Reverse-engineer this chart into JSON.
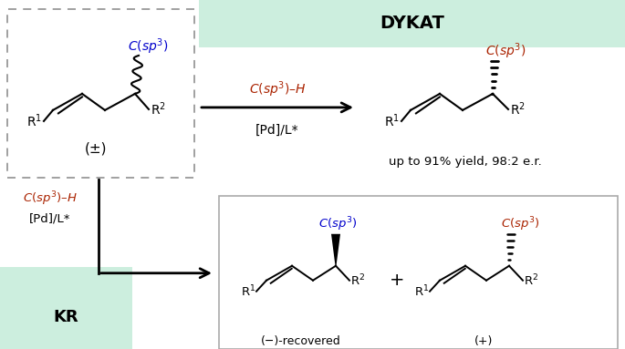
{
  "bg_color": "#ffffff",
  "mint_color": "#cceede",
  "dashed_box_color": "#999999",
  "red_color": "#aa2200",
  "blue_color": "#0000cc",
  "black_color": "#000000",
  "dykat_label": "DYKAT",
  "kr_label": "KR",
  "yield_label": "up to 91% yield, 98:2 e.r.",
  "pm_label": "(±)",
  "minus_recovered": "(−)-recovered",
  "plus_label": "(+)"
}
